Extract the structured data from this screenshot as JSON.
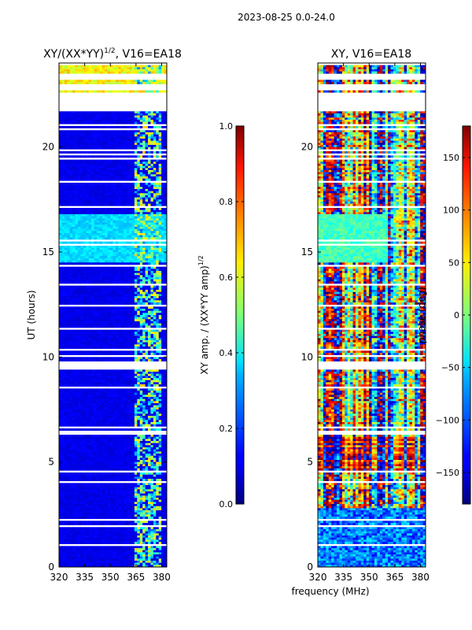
{
  "suptitle": "2023-08-25 0.0-24.0",
  "chart_data": [
    {
      "type": "heatmap",
      "title": "XY/(XX*YY)",
      "title_superscript": "1/2",
      "title_suffix": ", V16=EA18",
      "xlabel": "",
      "ylabel": "UT (hours)",
      "xlim": [
        320,
        383
      ],
      "ylim": [
        0,
        24
      ],
      "xticks": [
        "320",
        "335",
        "350",
        "365",
        "380"
      ],
      "yticks": [
        "0",
        "5",
        "10",
        "15",
        "20"
      ],
      "colorbar": {
        "label": "XY amp. / (XX*YY amp)",
        "label_superscript": "1/2",
        "range": [
          0.0,
          1.0
        ],
        "ticks": [
          "0.0",
          "0.2",
          "0.4",
          "0.6",
          "0.8",
          "1.0"
        ],
        "colormap": "jet"
      },
      "background_level": 0.08,
      "bright_band_hours": [
        14.5,
        16.7
      ],
      "bright_band_level": 0.3,
      "rfi_channels_mhz": [
        364,
        380
      ],
      "rfi_level": 0.45
    },
    {
      "type": "heatmap",
      "title": "XY, V16=EA18",
      "xlabel": "frequency (MHz)",
      "ylabel": "",
      "xlim": [
        320,
        383
      ],
      "ylim": [
        0,
        24
      ],
      "xticks": [
        "320",
        "335",
        "350",
        "365",
        "380"
      ],
      "yticks": [
        "0",
        "5",
        "10",
        "15",
        "20"
      ],
      "colorbar": {
        "label": "phase (deg)",
        "range": [
          -180,
          180
        ],
        "ticks": [
          "-150",
          "-100",
          "-50",
          "0",
          "50",
          "100",
          "150"
        ],
        "colormap": "jet"
      },
      "phase_mode": "mixed, banded in frequency"
    }
  ]
}
